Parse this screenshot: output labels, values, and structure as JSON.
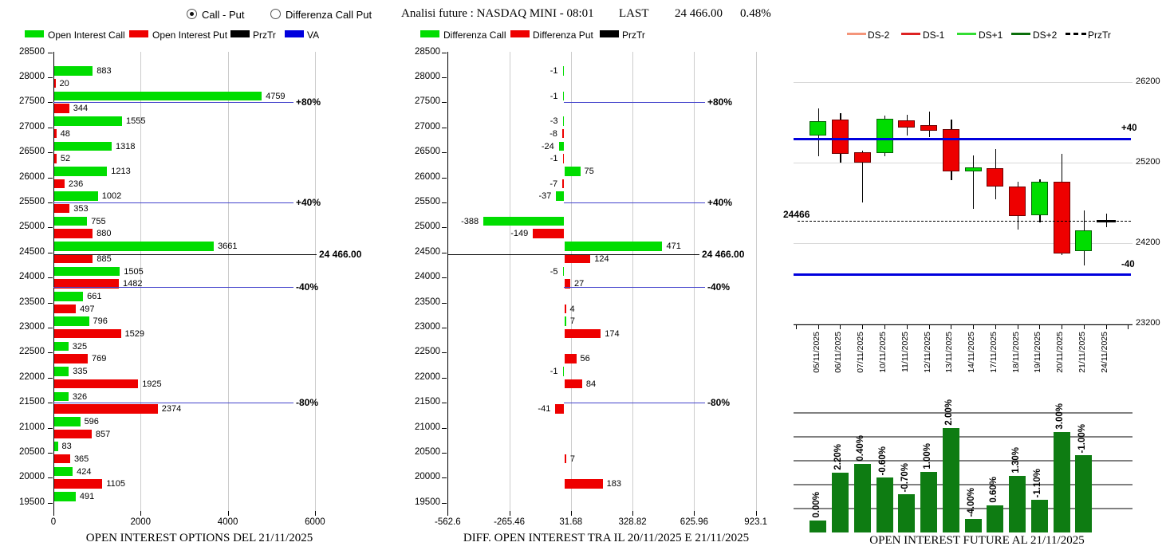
{
  "colors": {
    "call_green": "#00dd00",
    "put_red": "#ee0000",
    "prztr_black": "#000000",
    "va_blue": "#0000dd",
    "va_line_blue": "#4444cc",
    "ds_minus2": "#f4957a",
    "ds_minus1": "#dd2222",
    "ds_plus1": "#33dd33",
    "ds_plus2": "#0a6e0a",
    "future_bar_green": "#0e7c12"
  },
  "header": {
    "radios": [
      {
        "label": "Call - Put",
        "selected": true
      },
      {
        "label": "Differenza Call Put",
        "selected": false
      }
    ],
    "title": "Analisi future : NASDAQ MINI - 08:01",
    "last_label": "LAST",
    "last_value": "24 466.00",
    "change_pct": "0.48%"
  },
  "legends": {
    "options": [
      {
        "label": "Open Interest Call",
        "color": "#00dd00"
      },
      {
        "label": "Open Interest Put",
        "color": "#ee0000"
      },
      {
        "label": "PrzTr",
        "color": "#000000"
      },
      {
        "label": "VA",
        "color": "#0000dd"
      }
    ],
    "diff": [
      {
        "label": "Differenza Call",
        "color": "#00dd00"
      },
      {
        "label": "Differenza Put",
        "color": "#ee0000"
      },
      {
        "label": "PrzTr",
        "color": "#000000"
      }
    ],
    "future": [
      {
        "label": "DS-2",
        "color": "#f4957a",
        "dashed": false
      },
      {
        "label": "DS-1",
        "color": "#dd2222",
        "dashed": false
      },
      {
        "label": "DS+1",
        "color": "#33dd33",
        "dashed": false
      },
      {
        "label": "DS+2",
        "color": "#0a6e0a",
        "dashed": false
      },
      {
        "label": "PrzTr",
        "color": "#000000",
        "dashed": true
      }
    ]
  },
  "chart_data": [
    {
      "type": "bar",
      "orientation": "horizontal",
      "title": "OPEN INTEREST OPTIONS DEL 21/11/2025",
      "x_ticks": [
        "0",
        "2000",
        "4000",
        "6000"
      ],
      "xlim": [
        0,
        7400
      ],
      "series_names": [
        "Open Interest Call",
        "Open Interest Put"
      ],
      "rows": [
        {
          "strike": "28500",
          "call": null,
          "put": null
        },
        {
          "strike": "28000",
          "call": 883,
          "put": 20
        },
        {
          "strike": "27500",
          "call": 4759,
          "put": 344
        },
        {
          "strike": "27000",
          "call": 1555,
          "put": 48
        },
        {
          "strike": "26500",
          "call": 1318,
          "put": 52
        },
        {
          "strike": "26000",
          "call": 1213,
          "put": 236
        },
        {
          "strike": "25500",
          "call": 1002,
          "put": 353
        },
        {
          "strike": "25000",
          "call": 755,
          "put": 880
        },
        {
          "strike": "24500",
          "call": 3661,
          "put": 885
        },
        {
          "strike": "24000",
          "call": 1505,
          "put": 1482
        },
        {
          "strike": "23500",
          "call": 661,
          "put": 497
        },
        {
          "strike": "23000",
          "call": 796,
          "put": 1529
        },
        {
          "strike": "22500",
          "call": 325,
          "put": 769
        },
        {
          "strike": "22000",
          "call": 335,
          "put": 1925
        },
        {
          "strike": "21500",
          "call": 326,
          "put": 2374
        },
        {
          "strike": "21000",
          "call": 596,
          "put": 857
        },
        {
          "strike": "20500",
          "call": 83,
          "put": 365
        },
        {
          "strike": "20000",
          "call": 424,
          "put": 1105
        },
        {
          "strike": "19500",
          "call": 491,
          "put": null
        }
      ],
      "levels": [
        {
          "label": "+80%",
          "price": 27500,
          "type": "va"
        },
        {
          "label": "+40%",
          "price": 25500,
          "type": "va"
        },
        {
          "label": "24 466.00",
          "price": 24466,
          "type": "przTr"
        },
        {
          "label": "-40%",
          "price": 23810,
          "type": "va"
        },
        {
          "label": "-80%",
          "price": 21500,
          "type": "va"
        }
      ]
    },
    {
      "type": "bar",
      "orientation": "horizontal",
      "title": "DIFF. OPEN INTEREST TRA IL 20/11/2025 E 21/11/2025",
      "x_ticks": [
        "-562.6",
        "-265.46",
        "31.68",
        "328.82",
        "625.96",
        "923.1"
      ],
      "xlim": [
        -562.6,
        923.1
      ],
      "series_names": [
        "Differenza Call",
        "Differenza Put"
      ],
      "rows": [
        {
          "strike": "28500",
          "call": null,
          "put": null
        },
        {
          "strike": "28000",
          "call": -1,
          "put": null
        },
        {
          "strike": "27500",
          "call": -1,
          "put": null
        },
        {
          "strike": "27000",
          "call": -3,
          "put": -8
        },
        {
          "strike": "26500",
          "call": -24,
          "put": -1
        },
        {
          "strike": "26000",
          "call": 75,
          "put": -7
        },
        {
          "strike": "25500",
          "call": -37,
          "put": null
        },
        {
          "strike": "25000",
          "call": -388,
          "put": -149
        },
        {
          "strike": "24500",
          "call": 471,
          "put": 124
        },
        {
          "strike": "24000",
          "call": -5,
          "put": 27
        },
        {
          "strike": "23500",
          "call": null,
          "put": 4
        },
        {
          "strike": "23000",
          "call": 7,
          "put": 174
        },
        {
          "strike": "22500",
          "call": null,
          "put": 56
        },
        {
          "strike": "22000",
          "call": -1,
          "put": 84
        },
        {
          "strike": "21500",
          "call": null,
          "put": -41
        },
        {
          "strike": "21000",
          "call": null,
          "put": null
        },
        {
          "strike": "20500",
          "call": null,
          "put": 7
        },
        {
          "strike": "20000",
          "call": null,
          "put": 183
        },
        {
          "strike": "19500",
          "call": null,
          "put": null
        }
      ],
      "levels": [
        {
          "label": "+80%",
          "price": 27500,
          "type": "va"
        },
        {
          "label": "+40%",
          "price": 25500,
          "type": "va"
        },
        {
          "label": "24 466.00",
          "price": 24466,
          "type": "przTr"
        },
        {
          "label": "-40%",
          "price": 23810,
          "type": "va"
        },
        {
          "label": "-80%",
          "price": 21500,
          "type": "va"
        }
      ]
    },
    {
      "type": "candlestick",
      "title": "Analisi future NASDAQ MINI",
      "y_ticks": [
        26200,
        25200,
        24200,
        23200
      ],
      "ylim": [
        23200,
        26280
      ],
      "candles": [
        {
          "date": "05/11/2025",
          "open": 25540,
          "high": 25870,
          "low": 25280,
          "close": 25715
        },
        {
          "date": "06/11/2025",
          "open": 25730,
          "high": 25815,
          "low": 25195,
          "close": 25305
        },
        {
          "date": "07/11/2025",
          "open": 25330,
          "high": 25345,
          "low": 24705,
          "close": 25200
        },
        {
          "date": "10/11/2025",
          "open": 25315,
          "high": 25785,
          "low": 25280,
          "close": 25745
        },
        {
          "date": "11/11/2025",
          "open": 25725,
          "high": 25790,
          "low": 25535,
          "close": 25640
        },
        {
          "date": "12/11/2025",
          "open": 25670,
          "high": 25835,
          "low": 25520,
          "close": 25595
        },
        {
          "date": "13/11/2025",
          "open": 25615,
          "high": 25730,
          "low": 24980,
          "close": 25095
        },
        {
          "date": "14/11/2025",
          "open": 25090,
          "high": 25290,
          "low": 24630,
          "close": 25145
        },
        {
          "date": "17/11/2025",
          "open": 25135,
          "high": 25370,
          "low": 24745,
          "close": 24900
        },
        {
          "date": "18/11/2025",
          "open": 24905,
          "high": 24965,
          "low": 24365,
          "close": 24540
        },
        {
          "date": "19/11/2025",
          "open": 24550,
          "high": 24990,
          "low": 24455,
          "close": 24960
        },
        {
          "date": "20/11/2025",
          "open": 24965,
          "high": 25305,
          "low": 24050,
          "close": 24070
        },
        {
          "date": "21/11/2025",
          "open": 24100,
          "high": 24605,
          "low": 23920,
          "close": 24360
        },
        {
          "date": "24/11/2025",
          "open": 24460,
          "high": 24565,
          "low": 24400,
          "close": 24470,
          "doji": true
        }
      ],
      "levels": [
        {
          "label": "+40",
          "price": 25495,
          "type": "va"
        },
        {
          "label": "24466",
          "price": 24466,
          "type": "przTr"
        },
        {
          "label": "-40",
          "price": 23805,
          "type": "va"
        }
      ]
    },
    {
      "type": "bar",
      "orientation": "vertical",
      "title": "OPEN INTEREST FUTURE AL 21/11/2025",
      "bars": [
        {
          "date": "05/11/2025",
          "pct": "0.00%",
          "height_rel": 0.115
        },
        {
          "date": "06/11/2025",
          "pct": "2.20%",
          "height_rel": 0.573
        },
        {
          "date": "07/11/2025",
          "pct": "0.40%",
          "height_rel": 0.656
        },
        {
          "date": "10/11/2025",
          "pct": "-0.60%",
          "height_rel": 0.527
        },
        {
          "date": "11/11/2025",
          "pct": "-0.70%",
          "height_rel": 0.366
        },
        {
          "date": "12/11/2025",
          "pct": "1.00%",
          "height_rel": 0.58
        },
        {
          "date": "13/11/2025",
          "pct": "2.00%",
          "height_rel": 1.0
        },
        {
          "date": "14/11/2025",
          "pct": "-4.00%",
          "height_rel": 0.13
        },
        {
          "date": "17/11/2025",
          "pct": "0.60%",
          "height_rel": 0.26
        },
        {
          "date": "18/11/2025",
          "pct": "1.30%",
          "height_rel": 0.542
        },
        {
          "date": "19/11/2025",
          "pct": "-1.10%",
          "height_rel": 0.313
        },
        {
          "date": "20/11/2025",
          "pct": "3.00%",
          "height_rel": 0.962
        },
        {
          "date": "21/11/2025",
          "pct": "-1.00%",
          "height_rel": 0.74
        }
      ]
    }
  ]
}
